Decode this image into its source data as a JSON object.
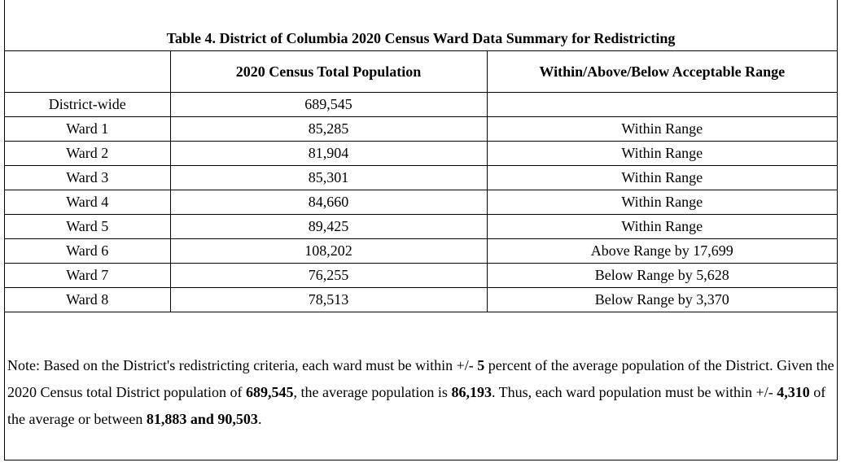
{
  "title": "Table 4. District of Columbia 2020 Census Ward Data Summary for Redistricting",
  "headers": [
    "",
    "2020 Census Total Population",
    "Within/Above/Below Acceptable Range"
  ],
  "rows": [
    {
      "name": "District-wide",
      "population": "689,545",
      "range": ""
    },
    {
      "name": "Ward 1",
      "population": "85,285",
      "range": "Within Range"
    },
    {
      "name": "Ward 2",
      "population": "81,904",
      "range": "Within Range"
    },
    {
      "name": "Ward 3",
      "population": "85,301",
      "range": "Within Range"
    },
    {
      "name": "Ward 4",
      "population": "84,660",
      "range": "Within Range"
    },
    {
      "name": "Ward 5",
      "population": "89,425",
      "range": "Within Range"
    },
    {
      "name": "Ward 6",
      "population": "108,202",
      "range": "Above Range by 17,699"
    },
    {
      "name": "Ward 7",
      "population": "76,255",
      "range": "Below Range by 5,628"
    },
    {
      "name": "Ward 8",
      "population": "78,513",
      "range": "Below Range by 3,370"
    }
  ],
  "note": {
    "p1": "Note: Based on the District's redistricting criteria, each ward must be within +/- ",
    "b1": "5",
    "p2": " percent of the average population of the District. Given the 2020 Census total District population of ",
    "b2": "689,545",
    "p3": ",  the average population is ",
    "b3": "86,193",
    "p4": ". Thus, each ward population must be within +/- ",
    "b4": "4,310",
    "p5": " of the average or between ",
    "b5": "81,883 and 90,503",
    "p6": "."
  }
}
